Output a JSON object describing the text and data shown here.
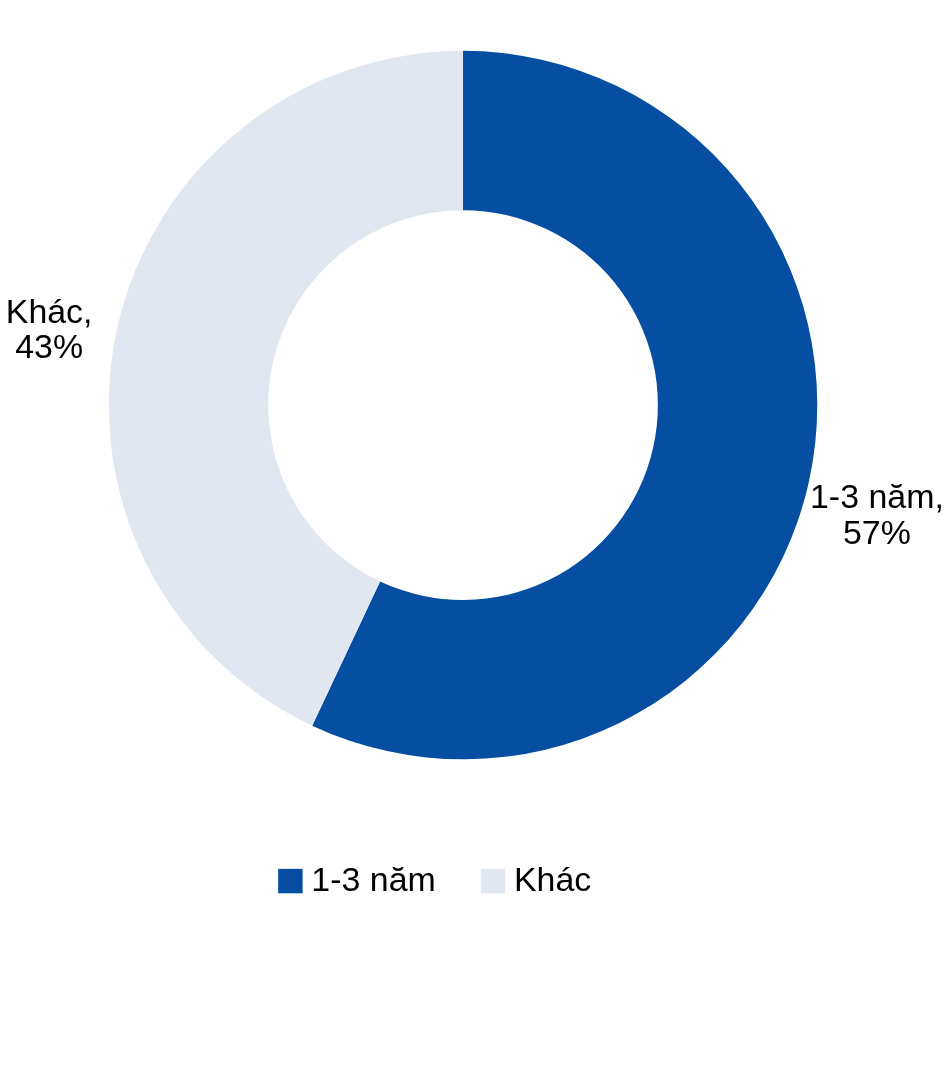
{
  "chart_data": {
    "type": "donut",
    "categories": [
      "1-3 năm",
      "Khác"
    ],
    "values": [
      57,
      43
    ],
    "colors": [
      "#054ea2",
      "#e1e7f0"
    ],
    "value_labels": [
      "1-3 năm,\n57%",
      "Khác,\n43%"
    ],
    "legend": "bottom"
  }
}
